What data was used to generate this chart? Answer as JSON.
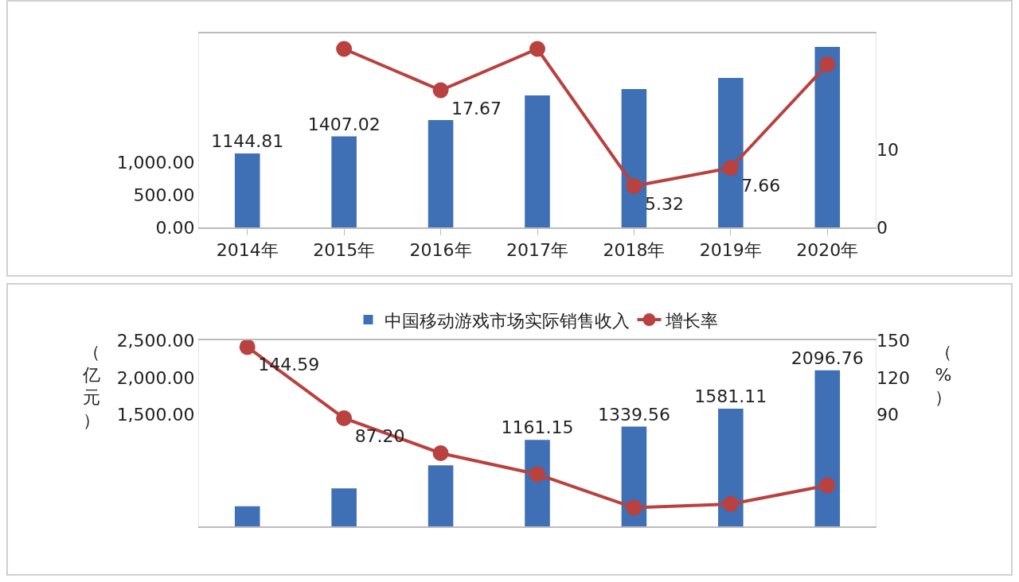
{
  "chart_data": [
    {
      "type": "bar",
      "categories": [
        "2014年",
        "2015年",
        "2016年",
        "2017年",
        "2018年",
        "2019年",
        "2020年"
      ],
      "series": [
        {
          "color": "#3f6fb5",
          "values": [
            1144.81,
            1407.02,
            1660,
            2040,
            2140,
            2310,
            2790
          ],
          "value_labels": [
            "1144.81",
            "1407.02",
            null,
            null,
            null,
            null,
            null
          ]
        },
        {
          "type": "line",
          "axis": "y2",
          "color": "#b9413f",
          "values": [
            null,
            23,
            17.67,
            23,
            5.32,
            7.66,
            21
          ],
          "value_labels": [
            null,
            null,
            "17.67",
            null,
            "5.32",
            "7.66",
            null
          ]
        }
      ],
      "ylim": [
        0,
        3000
      ],
      "yticks": [
        {
          "value": 0,
          "label": "0.00"
        },
        {
          "value": 500,
          "label": "500.00"
        },
        {
          "value": 1000,
          "label": "1,000.00"
        }
      ],
      "y2lim": [
        0,
        25
      ],
      "y2ticks": [
        0,
        10
      ],
      "marker": "circle",
      "legend": false,
      "grid": false
    },
    {
      "type": "bar",
      "categories": [
        null,
        null,
        null,
        null,
        null,
        null,
        null
      ],
      "ylabel": "（亿元）",
      "y2label": "（%）",
      "series": [
        {
          "name": "中国移动游戏市场实际销售收入",
          "color": "#3f6fb5",
          "values": [
            270,
            510,
            820,
            1161.15,
            1339.56,
            1581.11,
            2096.76
          ],
          "value_labels": [
            null,
            null,
            null,
            "1161.15",
            "1339.56",
            "1581.11",
            "2096.76"
          ]
        },
        {
          "type": "line",
          "axis": "y2",
          "name": "增长率",
          "color": "#b9413f",
          "values": [
            144.59,
            87.2,
            59,
            42,
            15,
            18,
            33
          ],
          "value_labels": [
            "144.59",
            "87.20",
            null,
            null,
            null,
            null,
            null
          ]
        }
      ],
      "ylim": [
        0,
        2500
      ],
      "yticks": [
        {
          "value": 1500,
          "label": "1,500.00"
        },
        {
          "value": 2000,
          "label": "2,000.00"
        },
        {
          "value": 2500,
          "label": "2,500.00"
        }
      ],
      "y2lim": [
        0,
        150
      ],
      "y2ticks": [
        90,
        120,
        150
      ],
      "marker": "circle",
      "legend": "top",
      "grid": false
    }
  ]
}
